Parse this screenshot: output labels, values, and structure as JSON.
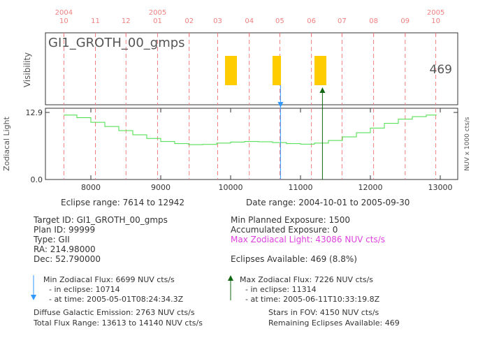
{
  "chart_data": {
    "type": "line",
    "target_name": "GI1_GROTH_00_gmps",
    "visibility_count": "469",
    "month_ticks": [
      {
        "year": "2004",
        "month": "10",
        "eclipse": 7614
      },
      {
        "year": "",
        "month": "11",
        "eclipse": 8065
      },
      {
        "year": "",
        "month": "12",
        "eclipse": 8503
      },
      {
        "year": "2005",
        "month": "01",
        "eclipse": 8955
      },
      {
        "year": "",
        "month": "02",
        "eclipse": 9407
      },
      {
        "year": "",
        "month": "03",
        "eclipse": 9815
      },
      {
        "year": "",
        "month": "04",
        "eclipse": 10267
      },
      {
        "year": "",
        "month": "05",
        "eclipse": 10704
      },
      {
        "year": "",
        "month": "06",
        "eclipse": 11156
      },
      {
        "year": "",
        "month": "07",
        "eclipse": 11594
      },
      {
        "year": "",
        "month": "08",
        "eclipse": 12046
      },
      {
        "year": "",
        "month": "09",
        "eclipse": 12498
      },
      {
        "year": "2005",
        "month": "10",
        "eclipse": 12936
      }
    ],
    "visibility_windows": [
      [
        9920,
        10090
      ],
      [
        10600,
        10720
      ],
      [
        11200,
        11370
      ]
    ],
    "x_ticks": [
      8000,
      9000,
      10000,
      11000,
      12000,
      13000
    ],
    "xlim": [
      7350,
      13250
    ],
    "y_tick_labels": [
      "0.0",
      "12.9"
    ],
    "ylim": [
      0,
      12.9
    ],
    "ylabel_top": "Visibility",
    "ylabel_bottom": "Zodiacal Light",
    "ylabel_right": "NUV x 1000 cts/s",
    "min_marker_eclipse": 10714,
    "max_marker_eclipse": 11314,
    "zodi_curve": {
      "x": [
        7614,
        7800,
        8000,
        8200,
        8400,
        8600,
        8800,
        9000,
        9200,
        9400,
        9600,
        9800,
        10000,
        10200,
        10400,
        10600,
        10800,
        11000,
        11200,
        11400,
        11600,
        11800,
        12000,
        12200,
        12400,
        12600,
        12800,
        12942
      ],
      "y": [
        12.4,
        11.9,
        11.0,
        10.2,
        9.4,
        8.6,
        7.9,
        7.3,
        6.9,
        6.7,
        6.75,
        7.0,
        7.2,
        7.3,
        7.25,
        7.1,
        6.9,
        6.8,
        7.0,
        7.5,
        8.2,
        9.0,
        9.9,
        10.8,
        11.6,
        12.1,
        12.4,
        12.5
      ]
    }
  },
  "info": {
    "eclipse_range": "Eclipse range: 7614 to 12942",
    "date_range": "Date range: 2004-10-01 to 2005-09-30",
    "target_id": "Target ID: GI1_GROTH_00_gmps",
    "plan_id": "Plan ID: 99999",
    "type": "Type: GII",
    "ra": "RA: 214.98000",
    "dec": "Dec: 52.790000",
    "min_planned_exposure": "Min Planned Exposure: 1500",
    "accumulated_exposure": "Accumulated Exposure: 0",
    "max_zodiacal_light": "Max Zodiacal Light: 43086 NUV cts/s",
    "eclipses_available": "Eclipses Available:  469   (8.8%)",
    "min_zodi_flux": "Min Zodiacal Flux: 6699 NUV cts/s",
    "min_zodi_eclipse": "- in eclipse: 10714",
    "min_zodi_time": "-   at time: 2005-05-01T08:24:34.3Z",
    "max_zodi_flux": "Max Zodiacal Flux: 7226 NUV cts/s",
    "max_zodi_eclipse": "- in eclipse: 11314",
    "max_zodi_time": "-   at time: 2005-06-11T10:33:19.8Z",
    "diffuse_galactic": "Diffuse Galactic Emission: 2763 NUV cts/s",
    "total_flux_range": "Total Flux Range: 13613 to 14140 NUV cts/s",
    "stars_in_fov": "Stars in FOV: 4150 NUV cts/s",
    "remaining_eclipses": "Remaining Eclipses Available: 469"
  },
  "colors": {
    "month_grid": "#f08080",
    "visibility_bar": "#ffcc00",
    "curve": "#44dd44",
    "min_marker": "#3399ff",
    "max_marker": "#116611",
    "highlight": "#e040e0"
  }
}
